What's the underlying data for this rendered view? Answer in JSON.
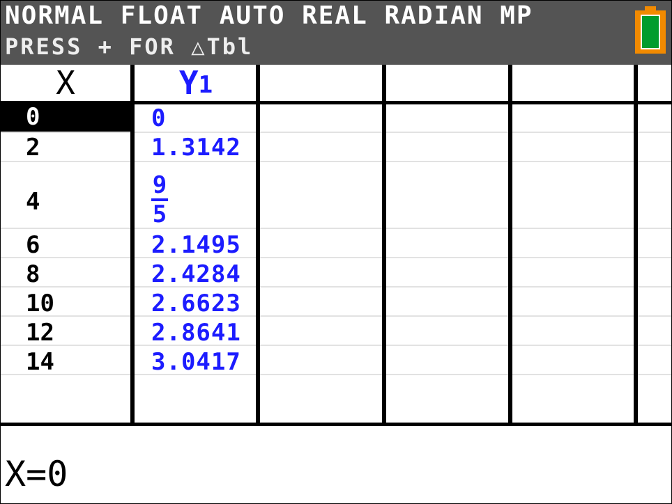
{
  "status": {
    "mode_line": "NORMAL FLOAT AUTO REAL RADIAN MP",
    "hint_line": "PRESS + FOR △Tbl",
    "battery_icon": "battery-icon",
    "battery_color": "#f28a00"
  },
  "table": {
    "headers": {
      "x": "X",
      "y1": "Y",
      "y1_sub": "1"
    },
    "rows": [
      {
        "x": "0",
        "y": "0"
      },
      {
        "x": "2",
        "y": "1.3142"
      },
      {
        "x": "4",
        "y_num": "9",
        "y_den": "5"
      },
      {
        "x": "6",
        "y": "2.1495"
      },
      {
        "x": "8",
        "y": "2.4284"
      },
      {
        "x": "10",
        "y": "2.6623"
      },
      {
        "x": "12",
        "y": "2.8641"
      },
      {
        "x": "14",
        "y": "3.0417"
      }
    ],
    "accent_color": "#1c1cff"
  },
  "entry_line": "X=0"
}
